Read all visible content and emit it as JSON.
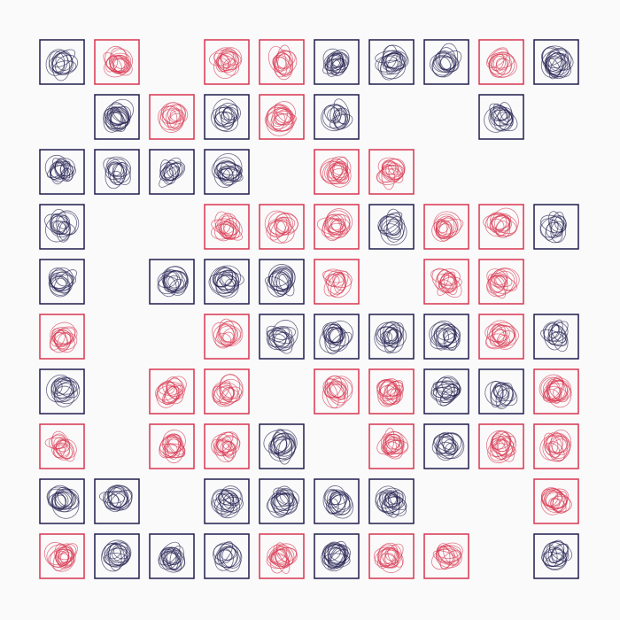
{
  "grid": {
    "rows": [
      [
        "#1f1c4d",
        "#d8344f",
        null,
        "#d8344f",
        "#d8344f",
        "#1f1c4d",
        "#1f1c4d",
        "#1f1c4d",
        "#d8344f",
        "#1f1c4d"
      ],
      [
        null,
        "#1f1c4d",
        "#d8344f",
        "#1f1c4d",
        "#d8344f",
        "#1f1c4d",
        null,
        null,
        "#1f1c4d",
        null
      ],
      [
        "#1f1c4d",
        "#1f1c4d",
        "#1f1c4d",
        "#1f1c4d",
        null,
        "#d8344f",
        "#d8344f",
        null,
        null,
        null
      ],
      [
        "#1f1c4d",
        null,
        null,
        "#d8344f",
        "#d8344f",
        "#d8344f",
        "#1f1c4d",
        "#d8344f",
        "#d8344f",
        "#1f1c4d"
      ],
      [
        "#1f1c4d",
        null,
        "#1f1c4d",
        "#1f1c4d",
        "#1f1c4d",
        "#d8344f",
        null,
        "#d8344f",
        "#d8344f",
        null
      ],
      [
        "#d8344f",
        null,
        null,
        "#d8344f",
        "#1f1c4d",
        "#1f1c4d",
        "#1f1c4d",
        "#1f1c4d",
        "#d8344f",
        "#1f1c4d"
      ],
      [
        "#1f1c4d",
        null,
        "#d8344f",
        "#d8344f",
        null,
        "#d8344f",
        "#d8344f",
        "#1f1c4d",
        "#1f1c4d",
        "#d8344f"
      ],
      [
        "#d8344f",
        null,
        "#d8344f",
        "#d8344f",
        "#1f1c4d",
        null,
        "#d8344f",
        "#1f1c4d",
        "#d8344f",
        "#d8344f"
      ],
      [
        "#1f1c4d",
        "#1f1c4d",
        null,
        "#1f1c4d",
        "#1f1c4d",
        "#1f1c4d",
        "#1f1c4d",
        null,
        null,
        "#d8344f"
      ],
      [
        "#d8344f",
        "#1f1c4d",
        "#1f1c4d",
        "#1f1c4d",
        "#d8344f",
        "#1f1c4d",
        "#d8344f",
        "#d8344f",
        null,
        "#1f1c4d"
      ]
    ]
  }
}
